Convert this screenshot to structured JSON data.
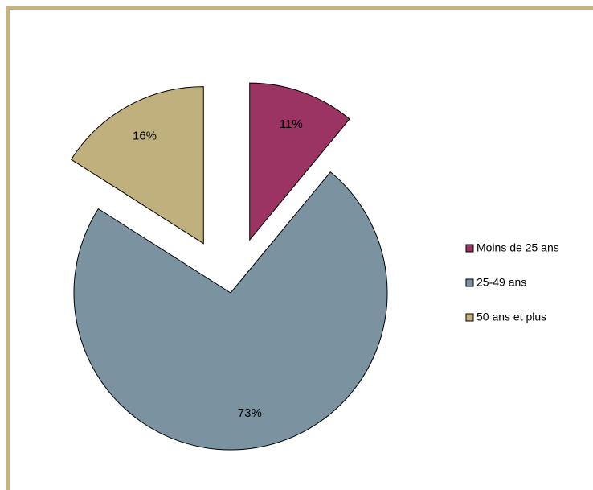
{
  "chart_data": {
    "type": "pie",
    "categories": [
      "Moins de 25 ans",
      "25-49 ans",
      "50 ans et plus"
    ],
    "values": [
      11,
      73,
      16
    ],
    "labels": [
      "11%",
      "73%",
      "16%"
    ],
    "colors": [
      "#9B3363",
      "#7B93A1",
      "#BFB07E"
    ],
    "exploded": true,
    "legend_position": "right"
  },
  "colors": {
    "frame": "#C8B378"
  }
}
